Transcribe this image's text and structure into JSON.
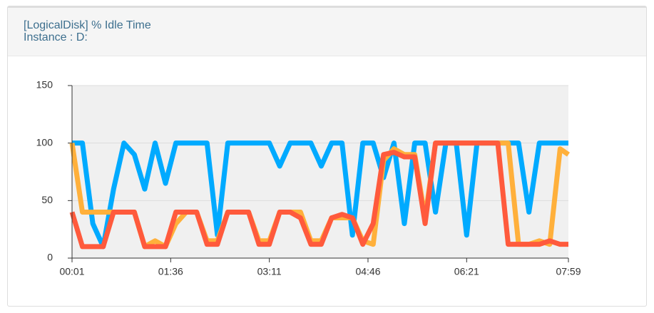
{
  "header": {
    "title": "[LogicalDisk] % Idle Time",
    "subtitle": "Instance : D:"
  },
  "chart_data": {
    "type": "line",
    "x": [
      1,
      11,
      21,
      31,
      41,
      51,
      61,
      71,
      81,
      91,
      101,
      111,
      121,
      131,
      141,
      151,
      161,
      171,
      181,
      191,
      201,
      211,
      221,
      231,
      241,
      251,
      261,
      271,
      281,
      291,
      301,
      311,
      321,
      331,
      341,
      351,
      361,
      371,
      381,
      391,
      401,
      411,
      421,
      431,
      441,
      451,
      461,
      471,
      479
    ],
    "series": [
      {
        "color": "#00aaff",
        "values": [
          100,
          100,
          30,
          10,
          60,
          100,
          90,
          60,
          100,
          65,
          100,
          100,
          100,
          100,
          20,
          100,
          100,
          100,
          100,
          100,
          80,
          100,
          100,
          100,
          80,
          100,
          100,
          20,
          100,
          100,
          70,
          100,
          30,
          100,
          100,
          40,
          100,
          100,
          20,
          100,
          100,
          100,
          100,
          100,
          40,
          100,
          100,
          100,
          100
        ]
      },
      {
        "color": "#ffb03b",
        "values": [
          100,
          40,
          40,
          40,
          40,
          40,
          40,
          10,
          15,
          10,
          30,
          40,
          40,
          15,
          15,
          40,
          40,
          40,
          15,
          15,
          40,
          40,
          40,
          15,
          15,
          35,
          35,
          35,
          15,
          12,
          85,
          95,
          90,
          90,
          35,
          100,
          100,
          100,
          100,
          100,
          100,
          100,
          100,
          12,
          12,
          15,
          12,
          95,
          90
        ]
      },
      {
        "color": "#ff5a3c",
        "values": [
          40,
          10,
          10,
          10,
          40,
          40,
          40,
          10,
          10,
          10,
          40,
          40,
          40,
          12,
          12,
          40,
          40,
          40,
          12,
          12,
          40,
          40,
          35,
          12,
          12,
          35,
          38,
          35,
          12,
          30,
          90,
          92,
          88,
          88,
          30,
          100,
          100,
          100,
          100,
          100,
          100,
          100,
          12,
          12,
          12,
          12,
          15,
          12,
          12
        ]
      }
    ],
    "xlim": [
      1,
      479
    ],
    "xticks": [
      {
        "value": 1,
        "label": "00:01"
      },
      {
        "value": 96,
        "label": "01:36"
      },
      {
        "value": 191,
        "label": "03:11"
      },
      {
        "value": 286,
        "label": "04:46"
      },
      {
        "value": 381,
        "label": "06:21"
      },
      {
        "value": 479,
        "label": "07:59"
      }
    ],
    "ylim": [
      0,
      150
    ],
    "yticks": [
      0,
      50,
      100,
      150
    ],
    "grid": true
  }
}
